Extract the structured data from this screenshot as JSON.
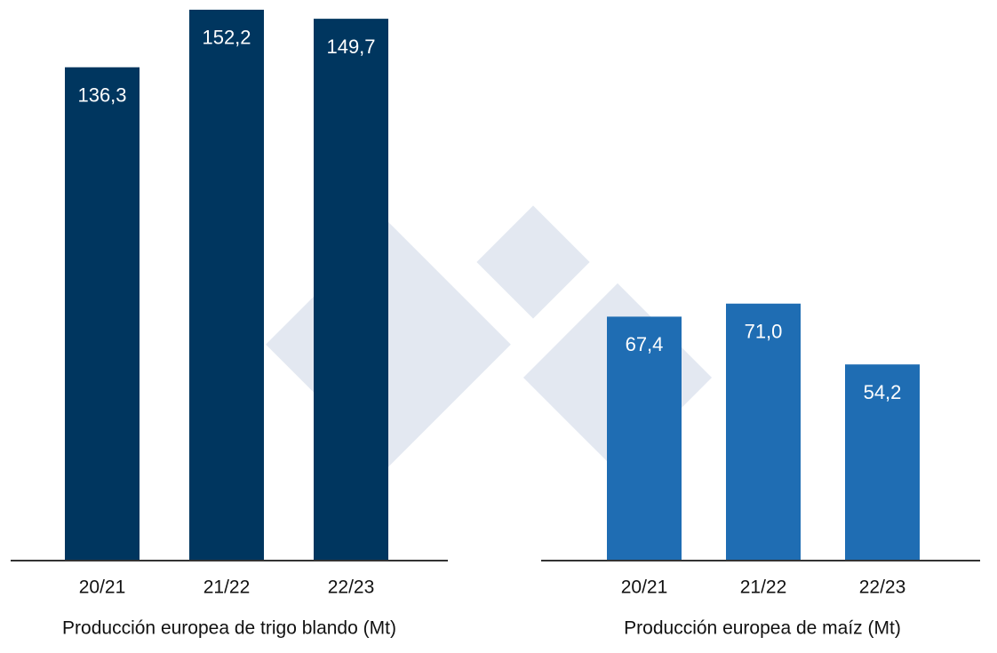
{
  "chart_data": [
    {
      "type": "bar",
      "title": "Producción europea de trigo blando (Mt)",
      "categories": [
        "20/21",
        "21/22",
        "22/23"
      ],
      "values": [
        136.3,
        152.2,
        149.7
      ],
      "value_labels": [
        "136,3",
        "152,2",
        "149,7"
      ],
      "color": "#00365f"
    },
    {
      "type": "bar",
      "title": "Producción europea de maíz (Mt)",
      "categories": [
        "20/21",
        "21/22",
        "22/23"
      ],
      "values": [
        67.4,
        71.0,
        54.2
      ],
      "value_labels": [
        "67,4",
        "71,0",
        "54,2"
      ],
      "color": "#1f6db3"
    }
  ]
}
